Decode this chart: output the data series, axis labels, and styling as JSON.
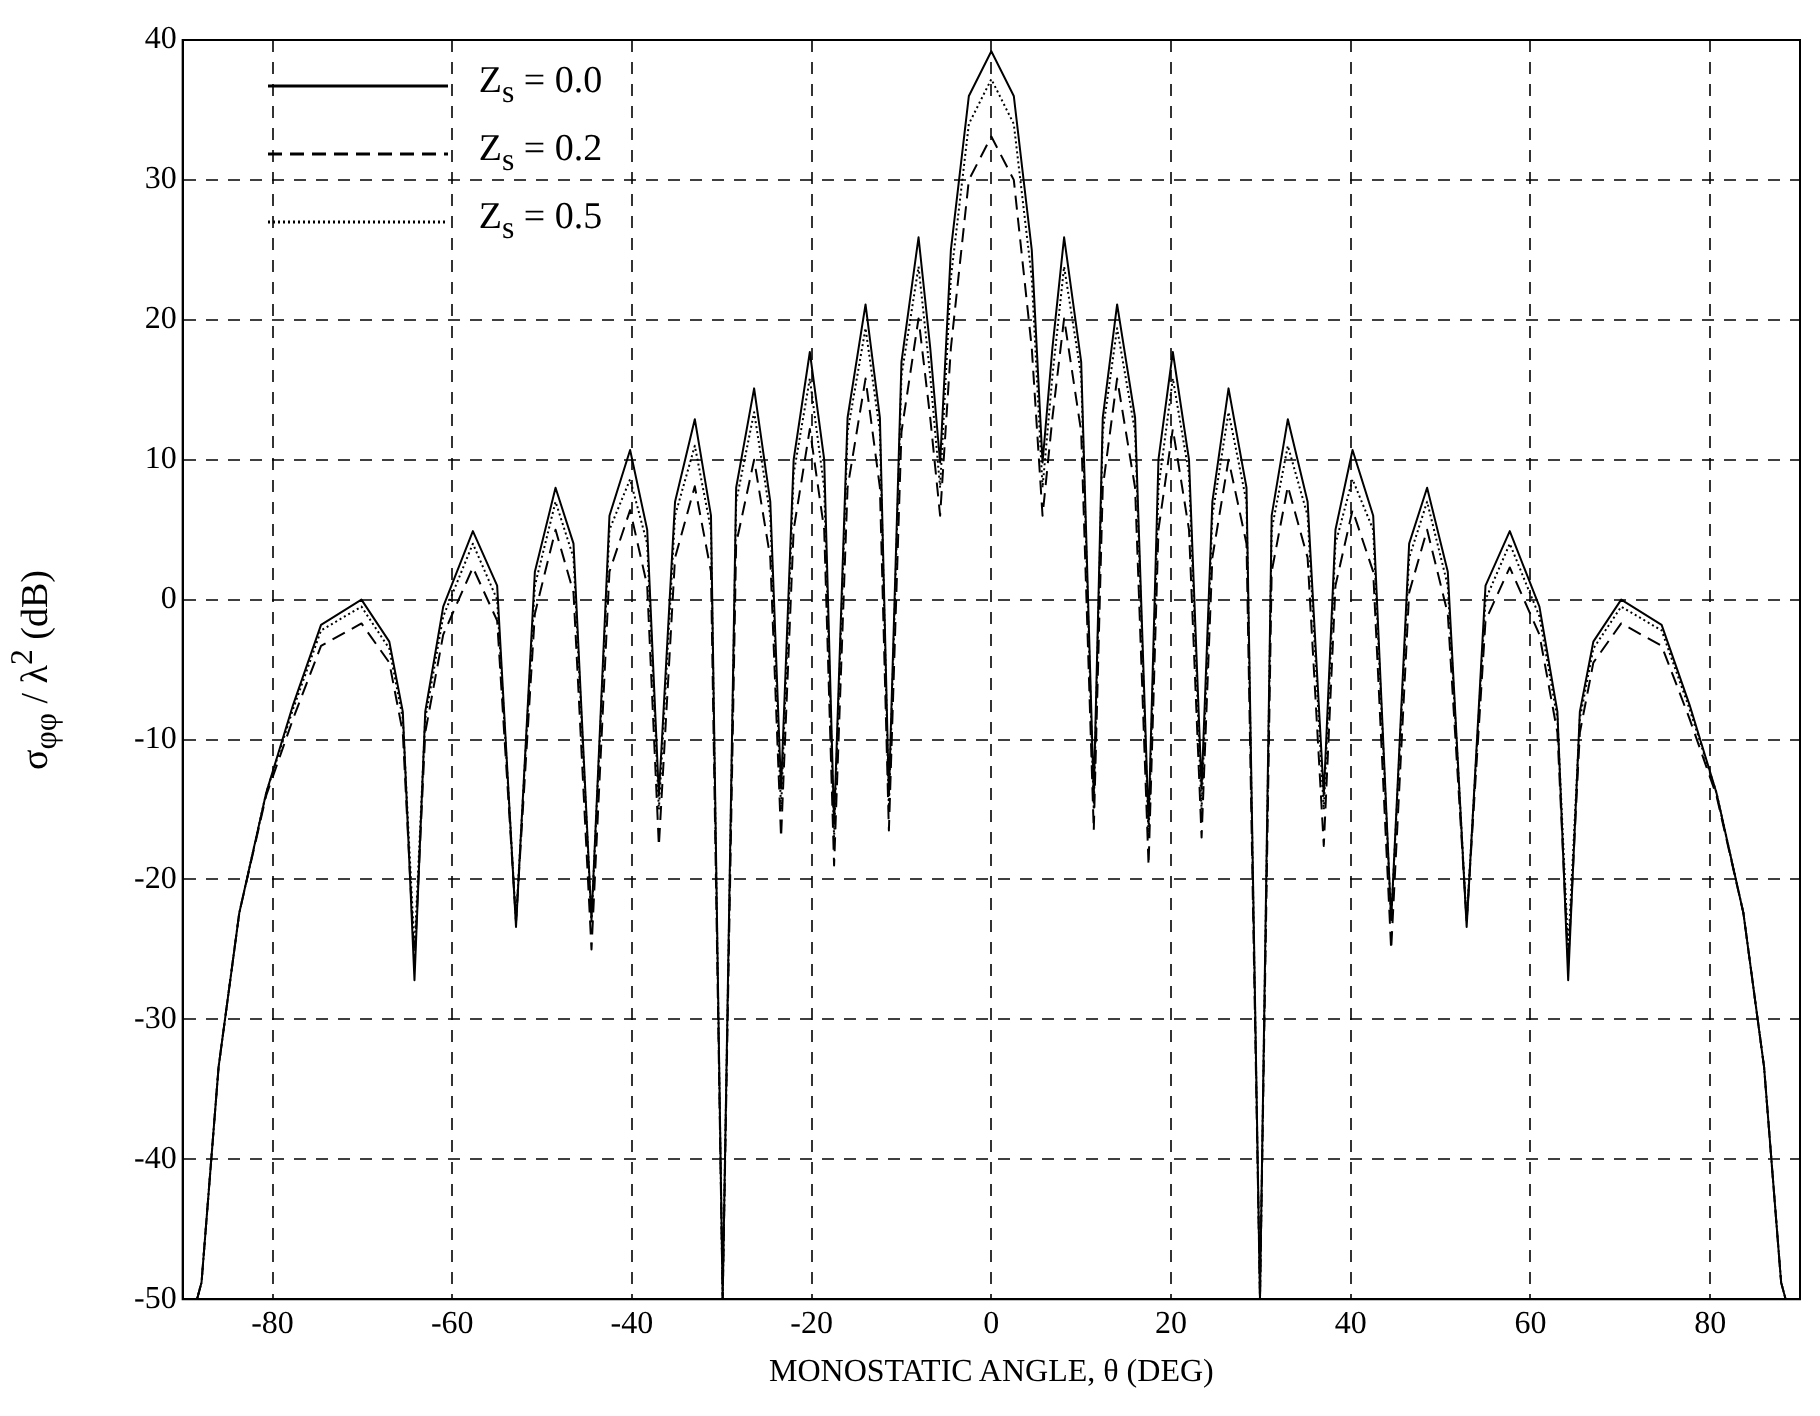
{
  "chart_data": {
    "type": "line",
    "xlabel": "MONOSTATIC ANGLE, θ (DEG)",
    "ylabel": "σ$_{φφ}$ / λ$^{2}$ (dB)",
    "x": [
      -88.4,
      -87.9,
      -86,
      -83.7,
      -80.7,
      -77.7,
      -74.6,
      -70.1,
      -67,
      -65.5,
      -64.2,
      -63,
      -61,
      -57.7,
      -55,
      -52.9,
      -50.8,
      -48.5,
      -46.5,
      -44.5,
      -42.5,
      -40.2,
      -38.3,
      -37,
      -35.2,
      -33,
      -31.2,
      -29.9,
      -28.4,
      -26.4,
      -24.6,
      -23.4,
      -22,
      -20.2,
      -18.6,
      -17.5,
      -16,
      -14,
      -12.4,
      -11.4,
      -10,
      -8.1,
      -6.8,
      -5.7,
      -4.5,
      -2.5,
      0,
      2.5,
      4.5,
      5.7,
      6.8,
      8.1,
      10,
      11.4,
      12.4,
      14,
      16,
      17.5,
      18.6,
      20.2,
      22,
      23.4,
      24.6,
      26.4,
      28.4,
      29.9,
      31.2,
      33,
      35.2,
      37,
      38.3,
      40.2,
      42.5,
      44.5,
      46.5,
      48.5,
      50.8,
      52.9,
      55,
      57.7,
      61,
      63,
      64.2,
      65.5,
      67,
      70.1,
      74.6,
      77.7,
      80.7,
      83.7,
      86,
      87.9,
      88.4
    ],
    "series": [
      {
        "name": "Z$_{s}$ = 0.0",
        "color": "#000000",
        "line_style": "solid",
        "values": [
          -50,
          -48.8,
          -33.4,
          -22.4,
          -13.8,
          -7.5,
          -1.8,
          0,
          -3,
          -8,
          -27.2,
          -8,
          -0.5,
          4.9,
          1,
          -23.4,
          2,
          8,
          4,
          -22.9,
          6,
          10.7,
          5,
          -14,
          7,
          12.9,
          6,
          -50,
          8,
          15.1,
          7,
          -13.5,
          10,
          17.7,
          10,
          -16,
          13,
          21.1,
          13,
          -14,
          17,
          25.9,
          18,
          9.8,
          25,
          36,
          39.2,
          36,
          25,
          9.8,
          18,
          25.9,
          17,
          -14,
          13,
          21.1,
          13,
          -16,
          10,
          17.7,
          10,
          -13.5,
          7,
          15.1,
          8,
          -50,
          6,
          12.9,
          7,
          -14,
          5,
          10.7,
          6,
          -22.9,
          4,
          8,
          2,
          -23.4,
          1,
          4.9,
          -0.5,
          -8,
          -27.2,
          -8,
          -3,
          0,
          -1.8,
          -7.5,
          -13.8,
          -22.4,
          -33.4,
          -48.8,
          -50
        ]
      },
      {
        "name": "Z$_{s}$ = 0.2",
        "color": "#000000",
        "line_style": "dashed",
        "values": [
          -50,
          -48.8,
          -33.4,
          -22.4,
          -14,
          -8.5,
          -3.3,
          -1.7,
          -4.5,
          -9.5,
          -26,
          -9.5,
          -2.5,
          2.3,
          -1.5,
          -23,
          -1,
          5,
          0.5,
          -25,
          2,
          6.4,
          1,
          -17.6,
          3,
          8.1,
          2,
          -50,
          4,
          10,
          3,
          -17,
          5,
          12.2,
          5,
          -19,
          8,
          15.8,
          8,
          -16.5,
          12,
          20.1,
          13,
          6,
          18,
          30,
          33.1,
          30,
          18,
          6,
          13,
          20.1,
          12,
          -16.5,
          8,
          15.8,
          8,
          -19,
          5,
          12.2,
          5,
          -17,
          3,
          10,
          4,
          -50,
          2,
          8.1,
          3,
          -17.6,
          1,
          6.4,
          2,
          -25,
          0.5,
          5,
          -1,
          -23,
          -1.5,
          2.3,
          -2.5,
          -9.5,
          -26,
          -9.5,
          -4.5,
          -1.7,
          -3.3,
          -8.5,
          -14,
          -22.4,
          -33.4,
          -48.8,
          -50
        ]
      },
      {
        "name": "Z$_{s}$ = 0.5",
        "color": "#000000",
        "line_style": "dotted",
        "values": [
          -50,
          -48.8,
          -33.4,
          -22.4,
          -13.8,
          -7.8,
          -2.2,
          -0.5,
          -3.5,
          -8.5,
          -25,
          -8.5,
          -1.2,
          4,
          0,
          -23,
          1,
          7,
          3,
          -23,
          5,
          8.6,
          4,
          -15,
          6,
          11,
          5,
          -50,
          7,
          13.4,
          6,
          -15,
          9,
          15.8,
          8,
          -17,
          12,
          19.4,
          12,
          -15,
          16,
          23.8,
          16,
          8,
          23,
          34,
          37.2,
          34,
          23,
          8,
          16,
          23.8,
          16,
          -15,
          12,
          19.4,
          12,
          -17,
          8,
          15.8,
          9,
          -15,
          6,
          13.4,
          7,
          -50,
          5,
          11,
          6,
          -15,
          4,
          8.6,
          5,
          -23,
          3,
          7,
          1,
          -23,
          0,
          4,
          -1.2,
          -8.5,
          -25,
          -8.5,
          -3.5,
          -0.5,
          -2.2,
          -7.8,
          -13.8,
          -22.4,
          -33.4,
          -48.8,
          -50
        ]
      }
    ],
    "xlim": [
      -90,
      90
    ],
    "xticks": [
      -80,
      -60,
      -40,
      -20,
      0,
      20,
      40,
      60,
      80
    ],
    "ylim": [
      -50,
      40
    ],
    "yticks": [
      -50,
      -40,
      -30,
      -20,
      -10,
      0,
      10,
      20,
      30,
      40
    ],
    "grid": true,
    "legend": "top left",
    "marker": "none"
  }
}
